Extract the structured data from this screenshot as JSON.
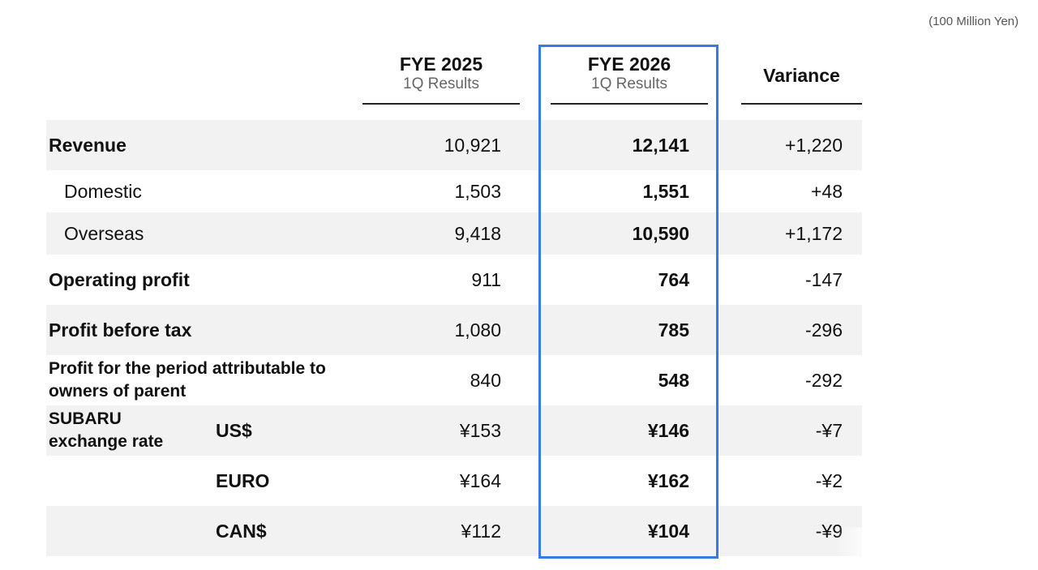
{
  "unit_note": "(100 Million Yen)",
  "headers": {
    "col_2025": {
      "title": "FYE 2025",
      "subtitle": "1Q Results"
    },
    "col_2026": {
      "title": "FYE 2026",
      "subtitle": "1Q Results"
    },
    "col_variance": {
      "title": "Variance"
    }
  },
  "rows": {
    "revenue": {
      "label": "Revenue",
      "v2025": "10,921",
      "v2026": "12,141",
      "variance": "+1,220"
    },
    "domestic": {
      "label": "Domestic",
      "v2025": "1,503",
      "v2026": "1,551",
      "variance": "+48"
    },
    "overseas": {
      "label": "Overseas",
      "v2025": "9,418",
      "v2026": "10,590",
      "variance": "+1,172"
    },
    "operating_profit": {
      "label": "Operating profit",
      "v2025": "911",
      "v2026": "764",
      "variance": "-147"
    },
    "profit_before_tax": {
      "label": "Profit before tax",
      "v2025": "1,080",
      "v2026": "785",
      "variance": "-296"
    },
    "profit_attributable": {
      "label_line1": "Profit for the period attributable to",
      "label_line2": "owners of parent",
      "v2025": "840",
      "v2026": "548",
      "variance": "-292"
    },
    "fx_usd": {
      "label_line1": "SUBARU",
      "label_line2": "exchange rate",
      "currency": "US$",
      "v2025": "¥153",
      "v2026": "¥146",
      "variance": "-¥7"
    },
    "fx_euro": {
      "currency": "EURO",
      "v2025": "¥164",
      "v2026": "¥162",
      "variance": "-¥2"
    },
    "fx_can": {
      "currency": "CAN$",
      "v2025": "¥112",
      "v2026": "¥104",
      "variance": "-¥9"
    }
  },
  "colors": {
    "highlight_border": "#3a78e6",
    "row_shade": "#f2f2f2"
  }
}
